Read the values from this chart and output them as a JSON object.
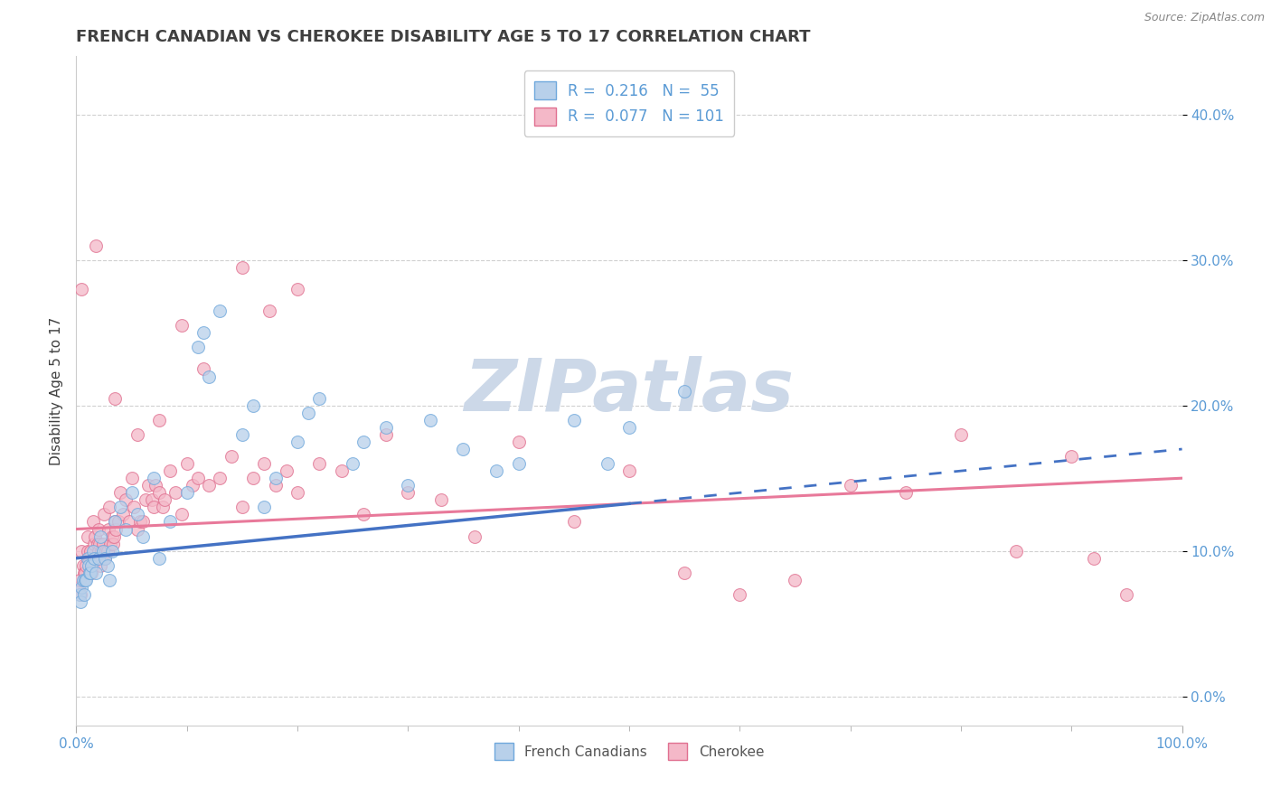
{
  "title": "FRENCH CANADIAN VS CHEROKEE DISABILITY AGE 5 TO 17 CORRELATION CHART",
  "source": "Source: ZipAtlas.com",
  "ylabel": "Disability Age 5 to 17",
  "ytick_labels": [
    "0.0%",
    "10.0%",
    "20.0%",
    "30.0%",
    "40.0%"
  ],
  "ytick_values": [
    0,
    10,
    20,
    30,
    40
  ],
  "xtick_labels": [
    "0.0%",
    "100.0%"
  ],
  "xtick_values": [
    0,
    100
  ],
  "xmin": 0,
  "xmax": 100,
  "ymin": -2,
  "ymax": 44,
  "legend1_line1": "R =  0.216   N =  55",
  "legend1_line2": "R =  0.077   N = 101",
  "legend2_labels": [
    "French Canadians",
    "Cherokee"
  ],
  "fc_x": [
    0.3,
    0.4,
    0.5,
    0.6,
    0.7,
    0.8,
    0.9,
    1.0,
    1.1,
    1.2,
    1.3,
    1.4,
    1.5,
    1.6,
    1.8,
    2.0,
    2.2,
    2.4,
    2.6,
    2.8,
    3.0,
    3.2,
    3.5,
    4.0,
    4.5,
    5.0,
    5.5,
    6.0,
    7.0,
    7.5,
    8.5,
    10.0,
    11.0,
    12.0,
    13.0,
    15.0,
    16.0,
    17.0,
    18.0,
    20.0,
    21.0,
    22.0,
    25.0,
    26.0,
    28.0,
    30.0,
    32.0,
    35.0,
    38.0,
    40.0,
    45.0,
    48.0,
    50.0,
    55.0,
    11.5
  ],
  "fc_y": [
    7.0,
    6.5,
    7.5,
    8.0,
    7.0,
    8.0,
    8.0,
    9.5,
    9.0,
    8.5,
    8.5,
    9.0,
    10.0,
    9.5,
    8.5,
    9.5,
    11.0,
    10.0,
    9.5,
    9.0,
    8.0,
    10.0,
    12.0,
    13.0,
    11.5,
    14.0,
    12.5,
    11.0,
    15.0,
    9.5,
    12.0,
    14.0,
    24.0,
    22.0,
    26.5,
    18.0,
    20.0,
    13.0,
    15.0,
    17.5,
    19.5,
    20.5,
    16.0,
    17.5,
    18.5,
    14.5,
    19.0,
    17.0,
    15.5,
    16.0,
    19.0,
    16.0,
    18.5,
    21.0,
    25.0
  ],
  "ch_x": [
    0.2,
    0.3,
    0.4,
    0.5,
    0.6,
    0.7,
    0.8,
    0.9,
    1.0,
    1.0,
    1.1,
    1.2,
    1.3,
    1.4,
    1.5,
    1.5,
    1.6,
    1.7,
    1.8,
    1.9,
    2.0,
    2.0,
    2.1,
    2.2,
    2.3,
    2.4,
    2.5,
    2.6,
    2.7,
    2.8,
    2.9,
    3.0,
    3.1,
    3.2,
    3.3,
    3.4,
    3.5,
    3.6,
    3.8,
    4.0,
    4.2,
    4.5,
    4.8,
    5.0,
    5.2,
    5.5,
    5.8,
    6.0,
    6.3,
    6.5,
    6.8,
    7.0,
    7.2,
    7.5,
    7.8,
    8.0,
    8.5,
    9.0,
    9.5,
    10.0,
    10.5,
    11.0,
    12.0,
    13.0,
    14.0,
    15.0,
    16.0,
    17.0,
    18.0,
    19.0,
    20.0,
    22.0,
    24.0,
    26.0,
    28.0,
    30.0,
    33.0,
    36.0,
    40.0,
    45.0,
    50.0,
    55.0,
    60.0,
    65.0,
    70.0,
    75.0,
    80.0,
    85.0,
    90.0,
    92.0,
    95.0,
    0.5,
    1.8,
    3.5,
    5.5,
    7.5,
    9.5,
    11.5,
    15.0,
    17.5,
    20.0
  ],
  "ch_y": [
    7.5,
    8.0,
    7.0,
    10.0,
    9.0,
    8.5,
    8.5,
    9.0,
    10.0,
    11.0,
    9.5,
    9.5,
    10.0,
    8.5,
    12.0,
    9.0,
    10.5,
    11.0,
    9.5,
    10.5,
    11.5,
    10.0,
    10.5,
    9.0,
    10.0,
    10.5,
    12.5,
    9.5,
    10.0,
    10.0,
    11.5,
    13.0,
    10.5,
    11.0,
    10.5,
    11.0,
    12.0,
    11.5,
    12.0,
    14.0,
    12.5,
    13.5,
    12.0,
    15.0,
    13.0,
    11.5,
    12.0,
    12.0,
    13.5,
    14.5,
    13.5,
    13.0,
    14.5,
    14.0,
    13.0,
    13.5,
    15.5,
    14.0,
    12.5,
    16.0,
    14.5,
    15.0,
    14.5,
    15.0,
    16.5,
    13.0,
    15.0,
    16.0,
    14.5,
    15.5,
    14.0,
    16.0,
    15.5,
    12.5,
    18.0,
    14.0,
    13.5,
    11.0,
    17.5,
    12.0,
    15.5,
    8.5,
    7.0,
    8.0,
    14.5,
    14.0,
    18.0,
    10.0,
    16.5,
    9.5,
    7.0,
    28.0,
    31.0,
    20.5,
    18.0,
    19.0,
    25.5,
    22.5,
    29.5,
    26.5,
    28.0
  ],
  "fc_trend_start": 9.5,
  "fc_trend_end": 17.0,
  "fc_solid_end": 50,
  "ch_trend_start": 11.5,
  "ch_trend_end": 15.0,
  "blue_scatter_face": "#b8d0ea",
  "blue_scatter_edge": "#6fa8dc",
  "pink_scatter_face": "#f4b8c8",
  "pink_scatter_edge": "#e07090",
  "blue_line_color": "#4472c4",
  "pink_line_color": "#e8799a",
  "watermark_text": "ZIPatlas",
  "watermark_color": "#ccd8e8",
  "title_color": "#404040",
  "title_fontsize": 13,
  "axis_tick_color": "#5b9bd5",
  "ylabel_color": "#404040",
  "grid_color": "#d0d0d0",
  "legend_text_color": "#5b9bd5",
  "legend_label_color": "#555555",
  "scatter_size": 100,
  "scatter_alpha": 0.75
}
